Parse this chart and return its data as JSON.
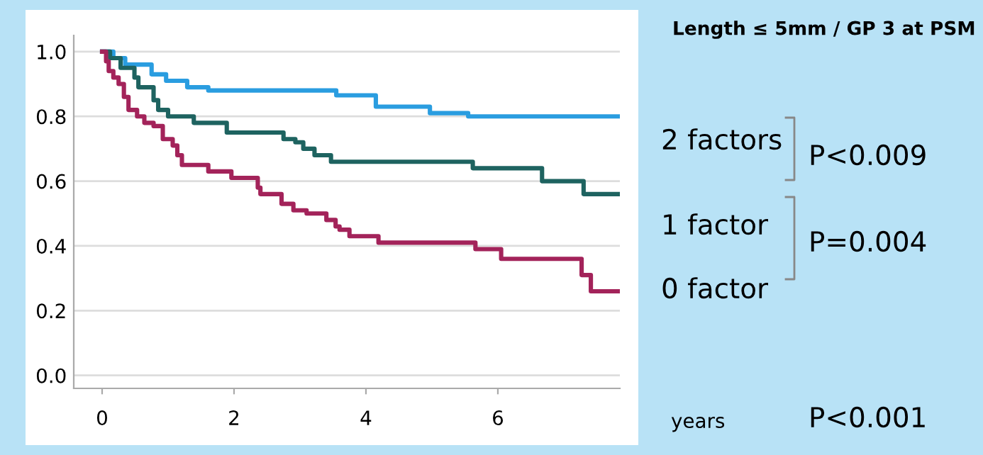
{
  "chart_data": {
    "type": "step",
    "xlabel": "years",
    "title": "Length ≤ 5mm / GP 3 at PSM",
    "annotations": [
      "P<0.009",
      "P=0.004",
      "P<0.001"
    ],
    "xlim": [
      -0.43,
      7.85
    ],
    "ylim": [
      -0.04,
      1.05
    ],
    "xticks": [
      0,
      2,
      4,
      6
    ],
    "yticks": [
      {
        "value": 0,
        "label": "0.0"
      },
      {
        "value": 0.2,
        "label": "0.2"
      },
      {
        "value": 0.4,
        "label": "0.4"
      },
      {
        "value": 0.6,
        "label": "0.6"
      },
      {
        "value": 0.8,
        "label": "0.8"
      },
      {
        "value": 1,
        "label": "1.0"
      }
    ],
    "grid": "y",
    "legend": false,
    "series": [
      {
        "name": "2 factors",
        "color": "#2a9de0",
        "x": [
          0,
          0.17,
          0.35,
          0.75,
          0.97,
          1.29,
          1.61,
          3.55,
          4.15,
          4.97,
          5.55,
          7.85
        ],
        "values": [
          1.0,
          0.98,
          0.96,
          0.93,
          0.91,
          0.89,
          0.88,
          0.865,
          0.83,
          0.81,
          0.8,
          0.8
        ]
      },
      {
        "name": "1 factor",
        "color": "#1e6360",
        "x": [
          0,
          0.12,
          0.28,
          0.49,
          0.55,
          0.78,
          0.85,
          1.0,
          1.39,
          1.89,
          2.75,
          2.93,
          3.05,
          3.22,
          3.47,
          5.62,
          6.67,
          7.3,
          7.85
        ],
        "values": [
          1.0,
          0.98,
          0.95,
          0.92,
          0.89,
          0.85,
          0.82,
          0.8,
          0.78,
          0.75,
          0.73,
          0.72,
          0.7,
          0.68,
          0.66,
          0.64,
          0.6,
          0.56,
          0.56
        ]
      },
      {
        "name": "0 factor",
        "color": "#a3235a",
        "x": [
          0,
          0.06,
          0.1,
          0.17,
          0.25,
          0.33,
          0.4,
          0.53,
          0.64,
          0.78,
          0.92,
          1.07,
          1.14,
          1.21,
          1.61,
          1.96,
          2.36,
          2.4,
          2.72,
          2.9,
          3.1,
          3.4,
          3.54,
          3.6,
          3.75,
          4.19,
          5.66,
          6.05,
          7.27,
          7.41,
          7.85
        ],
        "values": [
          1.0,
          0.97,
          0.94,
          0.92,
          0.9,
          0.86,
          0.82,
          0.8,
          0.78,
          0.77,
          0.73,
          0.71,
          0.68,
          0.65,
          0.63,
          0.61,
          0.58,
          0.56,
          0.53,
          0.51,
          0.5,
          0.48,
          0.46,
          0.45,
          0.43,
          0.41,
          0.39,
          0.36,
          0.31,
          0.26,
          0.26
        ]
      }
    ]
  }
}
